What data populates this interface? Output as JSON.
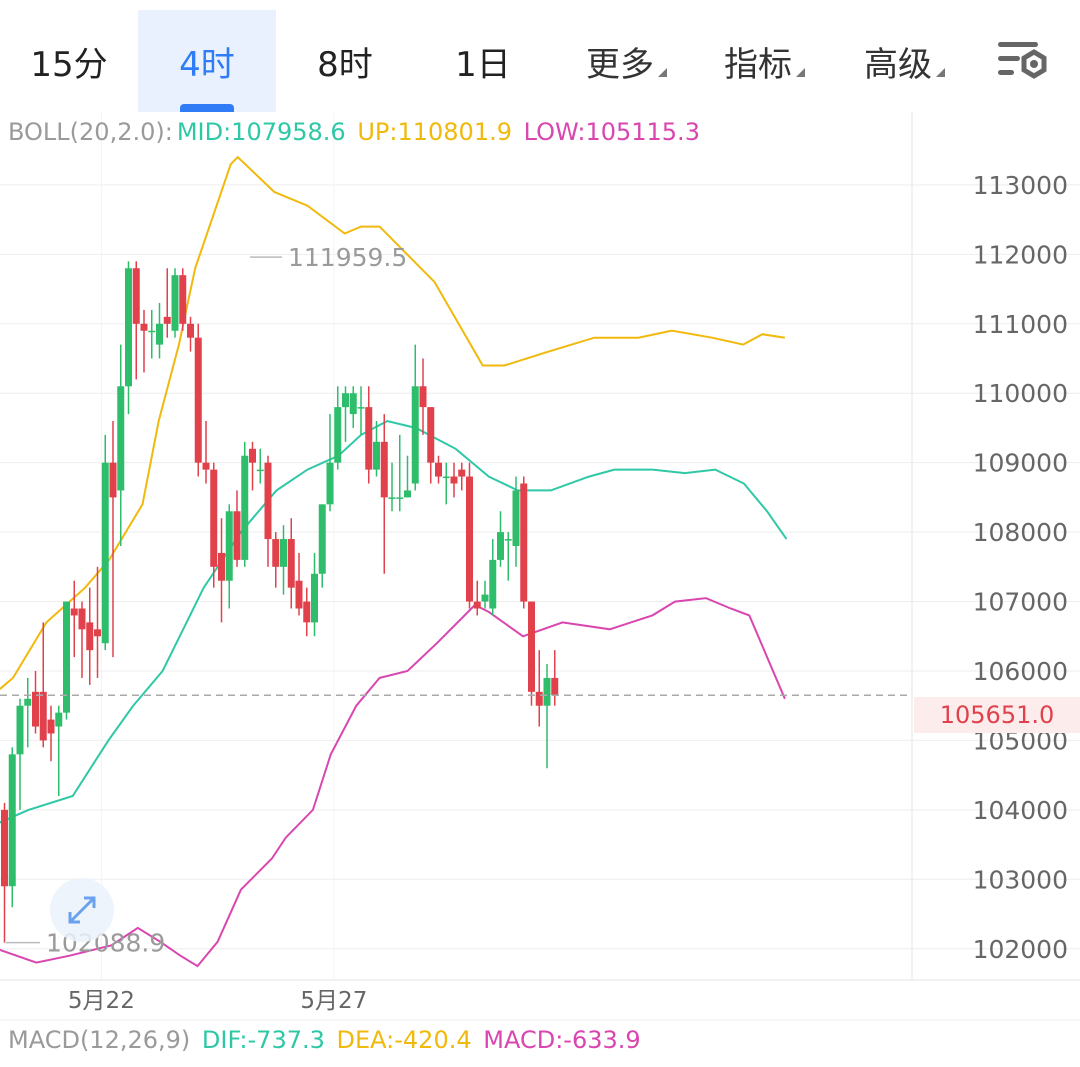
{
  "tabs": [
    {
      "label": "15分",
      "active": false
    },
    {
      "label": "4时",
      "active": true
    },
    {
      "label": "8时",
      "active": false
    },
    {
      "label": "1日",
      "active": false
    }
  ],
  "dropdowns": [
    {
      "label": "更多"
    },
    {
      "label": "指标"
    },
    {
      "label": "高级"
    }
  ],
  "boll_legend": {
    "name": "BOLL(20,2.0):",
    "mid": "MID:107958.6",
    "up": "UP:110801.9",
    "low": "LOW:105115.3"
  },
  "macd_legend": {
    "name": "MACD(12,26,9)",
    "dif": "DIF:-737.3",
    "dea": "DEA:-420.4",
    "macd": "MACD:-633.9"
  },
  "current_price": "105651.0",
  "high_marker": "111959.5",
  "low_marker": "102088.9",
  "colors": {
    "up": "#2ebd6b",
    "down": "#e0414b",
    "mid": "#2ec8a6",
    "upper": "#f0b90b",
    "lower": "#d946b0",
    "accent": "#2f7cf6"
  },
  "chart_data": {
    "type": "candlestick",
    "ylim": [
      101550,
      114050
    ],
    "y_ticks": [
      102000,
      103000,
      104000,
      105000,
      106000,
      107000,
      108000,
      109000,
      110000,
      111000,
      112000,
      113000
    ],
    "x_labels": [
      {
        "label": "5月22",
        "index": 12.5
      },
      {
        "label": "5月27",
        "index": 42.5
      }
    ],
    "candles": [
      [
        104000,
        102900,
        104100,
        102088.9
      ],
      [
        102900,
        104800,
        104900,
        102600
      ],
      [
        104800,
        105500,
        105600,
        104000
      ],
      [
        105500,
        105600,
        105900,
        104900
      ],
      [
        105700,
        105200,
        106000,
        105100
      ],
      [
        105700,
        105000,
        106700,
        104900
      ],
      [
        105300,
        105100,
        105500,
        104700
      ],
      [
        105200,
        105400,
        105500,
        104200
      ],
      [
        105400,
        107000,
        107000,
        105300
      ],
      [
        106900,
        106800,
        107300,
        106200
      ],
      [
        106900,
        106600,
        107000,
        105900
      ],
      [
        106700,
        106300,
        107200,
        105800
      ],
      [
        106600,
        106500,
        107500,
        105900
      ],
      [
        106400,
        109000,
        109400,
        106300
      ],
      [
        109000,
        108500,
        109600,
        106200
      ],
      [
        108600,
        110100,
        110700,
        107800
      ],
      [
        110100,
        111800,
        111900,
        109700
      ],
      [
        111800,
        111000,
        111900,
        110200
      ],
      [
        111000,
        110900,
        111200,
        110300
      ],
      [
        110900,
        110900,
        111200,
        110500
      ],
      [
        110700,
        111000,
        111300,
        110500
      ],
      [
        111100,
        111000,
        111800,
        110800
      ],
      [
        110900,
        111700,
        111800,
        110800
      ],
      [
        111700,
        111000,
        111800,
        110900
      ],
      [
        111000,
        110800,
        111100,
        110600
      ],
      [
        110800,
        109000,
        111000,
        108800
      ],
      [
        109000,
        108900,
        109600,
        108700
      ],
      [
        108900,
        107500,
        109000,
        107200
      ],
      [
        107700,
        107300,
        108200,
        106700
      ],
      [
        107300,
        108300,
        108400,
        106900
      ],
      [
        108300,
        107600,
        108600,
        107500
      ],
      [
        107600,
        109100,
        109300,
        107500
      ],
      [
        109200,
        109000,
        109300,
        108600
      ],
      [
        108900,
        108900,
        109200,
        108700
      ],
      [
        109000,
        107900,
        109100,
        107500
      ],
      [
        107900,
        107500,
        108000,
        107200
      ],
      [
        107500,
        107900,
        108100,
        107100
      ],
      [
        107900,
        107200,
        108200,
        106900
      ],
      [
        107300,
        106900,
        107700,
        106800
      ],
      [
        107000,
        106700,
        107200,
        106500
      ],
      [
        106700,
        107400,
        107700,
        106500
      ],
      [
        107400,
        108400,
        108400,
        107200
      ],
      [
        108400,
        109000,
        109700,
        108300
      ],
      [
        109000,
        109800,
        110100,
        108900
      ],
      [
        109800,
        110000,
        110100,
        109300
      ],
      [
        109700,
        110000,
        110100,
        109500
      ],
      [
        109800,
        109800,
        110100,
        109400
      ],
      [
        109800,
        108900,
        110100,
        108700
      ],
      [
        108900,
        109300,
        109600,
        108800
      ],
      [
        109300,
        108500,
        109700,
        107400
      ],
      [
        108500,
        108500,
        109000,
        108300
      ],
      [
        108500,
        108500,
        109400,
        108300
      ],
      [
        108500,
        108600,
        109100,
        108500
      ],
      [
        108700,
        110100,
        110700,
        108600
      ],
      [
        110100,
        109800,
        110500,
        109400
      ],
      [
        109800,
        109000,
        109800,
        108700
      ],
      [
        109000,
        108800,
        109100,
        108700
      ],
      [
        108800,
        108800,
        109000,
        108400
      ],
      [
        108800,
        108700,
        109000,
        108500
      ],
      [
        108900,
        108800,
        109000,
        108600
      ],
      [
        108800,
        107000,
        109000,
        106900
      ],
      [
        107000,
        106900,
        107300,
        106800
      ],
      [
        107000,
        107100,
        107300,
        106900
      ],
      [
        106900,
        107600,
        107900,
        106800
      ],
      [
        107600,
        108000,
        108300,
        107500
      ],
      [
        107900,
        107900,
        108000,
        107300
      ],
      [
        107800,
        108600,
        108800,
        107500
      ],
      [
        108700,
        107000,
        108800,
        106900
      ],
      [
        107000,
        105700,
        107000,
        105500
      ],
      [
        105700,
        105500,
        106300,
        105200
      ],
      [
        105500,
        105900,
        106100,
        104600
      ],
      [
        105900,
        105651,
        106300,
        105500
      ]
    ],
    "boll_upper": [
      [
        -1,
        105700
      ],
      [
        1.1,
        105900
      ],
      [
        5.4,
        106700
      ],
      [
        10.4,
        107200
      ],
      [
        13.5,
        107600
      ],
      [
        17.8,
        108400
      ],
      [
        19.9,
        109600
      ],
      [
        22.5,
        110700
      ],
      [
        24.6,
        111800
      ],
      [
        29.2,
        113300
      ],
      [
        30.1,
        113400
      ],
      [
        34.8,
        112900
      ],
      [
        39.1,
        112700
      ],
      [
        43.9,
        112300
      ],
      [
        46,
        112400
      ],
      [
        48.4,
        112400
      ],
      [
        55.5,
        111600
      ],
      [
        61.7,
        110400
      ],
      [
        64.5,
        110400
      ],
      [
        70.2,
        110600
      ],
      [
        76.1,
        110800
      ],
      [
        81.8,
        110800
      ],
      [
        86.1,
        110900
      ],
      [
        91.3,
        110800
      ],
      [
        95.3,
        110700
      ],
      [
        97.8,
        110850
      ],
      [
        100.7,
        110800
      ]
    ],
    "boll_mid": [
      [
        -1,
        103800
      ],
      [
        3.1,
        104000
      ],
      [
        8.8,
        104200
      ],
      [
        13.4,
        105000
      ],
      [
        16.6,
        105500
      ],
      [
        20.4,
        106000
      ],
      [
        25.7,
        107200
      ],
      [
        30.5,
        108000
      ],
      [
        35.1,
        108600
      ],
      [
        39.1,
        108900
      ],
      [
        43.1,
        109100
      ],
      [
        46,
        109400
      ],
      [
        49.4,
        109600
      ],
      [
        53.1,
        109500
      ],
      [
        58.2,
        109200
      ],
      [
        62.5,
        108800
      ],
      [
        66.2,
        108600
      ],
      [
        70.5,
        108600
      ],
      [
        75.4,
        108800
      ],
      [
        78.7,
        108900
      ],
      [
        83.6,
        108900
      ],
      [
        87.8,
        108850
      ],
      [
        91.7,
        108900
      ],
      [
        95.4,
        108700
      ],
      [
        98.4,
        108300
      ],
      [
        100.9,
        107900
      ]
    ],
    "boll_lower": [
      [
        -1,
        102000
      ],
      [
        4.1,
        101800
      ],
      [
        8.4,
        101900
      ],
      [
        13.8,
        102050
      ],
      [
        17.2,
        102300
      ],
      [
        20.1,
        102100
      ],
      [
        22.7,
        101900
      ],
      [
        24.9,
        101750
      ],
      [
        27.5,
        102100
      ],
      [
        30.5,
        102850
      ],
      [
        34.5,
        103300
      ],
      [
        36.3,
        103600
      ],
      [
        39.8,
        104000
      ],
      [
        42.1,
        104800
      ],
      [
        45.4,
        105500
      ],
      [
        48.4,
        105900
      ],
      [
        52,
        106000
      ],
      [
        55.8,
        106400
      ],
      [
        60.7,
        106950
      ],
      [
        62.5,
        106850
      ],
      [
        66.9,
        106500
      ],
      [
        72,
        106700
      ],
      [
        78.1,
        106600
      ],
      [
        83.6,
        106800
      ],
      [
        86.5,
        107000
      ],
      [
        90.5,
        107050
      ],
      [
        93.7,
        106900
      ],
      [
        96.1,
        106800
      ],
      [
        100.7,
        105600
      ]
    ]
  }
}
